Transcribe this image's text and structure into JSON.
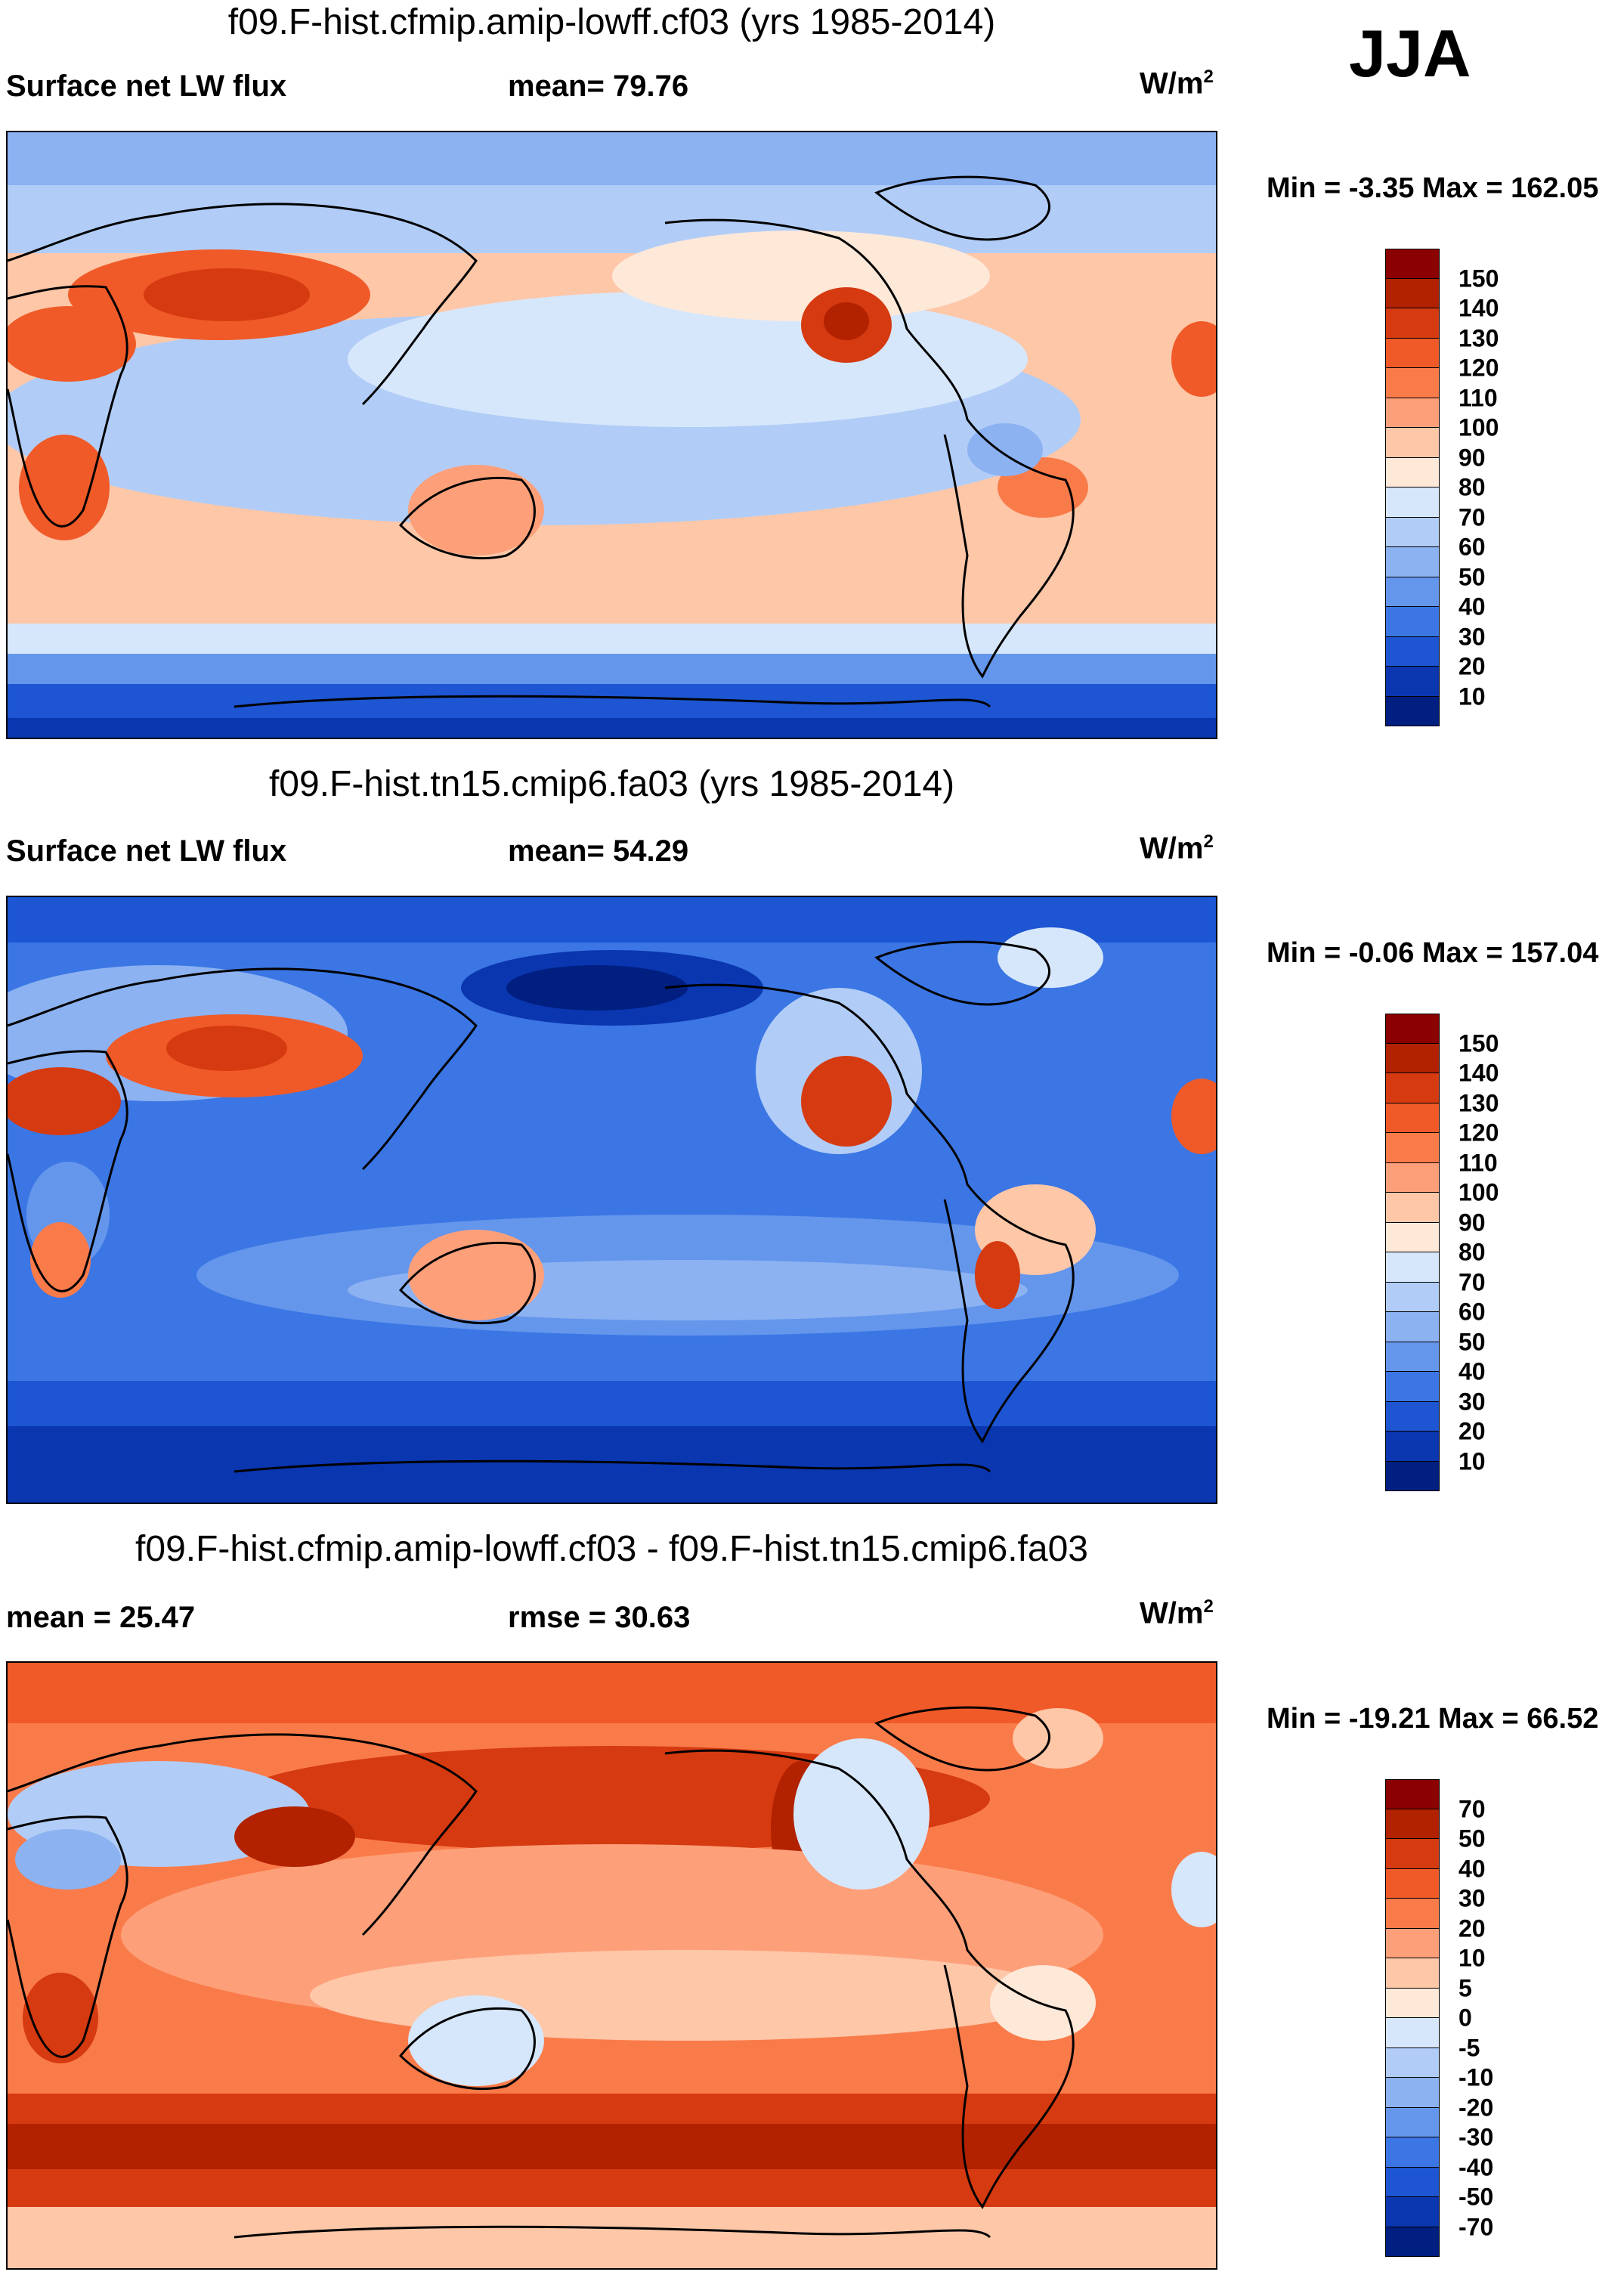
{
  "season": "JJA",
  "panels": [
    {
      "title": "f09.F-hist.cfmip.amip-lowff.cf03 (yrs 1985-2014)",
      "left_label": "Surface net LW flux",
      "center_label": "mean=  79.76",
      "unit": "W/m",
      "unit_sup": "2",
      "minmax": "Min =  -3.35 Max = 162.05",
      "scheme": "abs1"
    },
    {
      "title": "f09.F-hist.tn15.cmip6.fa03 (yrs 1985-2014)",
      "left_label": "Surface net LW flux",
      "center_label": "mean=  54.29",
      "unit": "W/m",
      "unit_sup": "2",
      "minmax": "Min =  -0.06 Max = 157.04",
      "scheme": "abs2"
    },
    {
      "title": "f09.F-hist.cfmip.amip-lowff.cf03 - f09.F-hist.tn15.cmip6.fa03",
      "left_label": "mean =  25.47",
      "center_label": "rmse =  30.63",
      "unit": "W/m",
      "unit_sup": "2",
      "minmax": "Min = -19.21 Max =  66.52",
      "scheme": "diff"
    }
  ],
  "colorbars": [
    {
      "labels": [
        "150",
        "140",
        "130",
        "120",
        "110",
        "100",
        "90",
        "80",
        "70",
        "60",
        "50",
        "40",
        "30",
        "20",
        "10"
      ],
      "colors": [
        "#8b0000",
        "#b22200",
        "#d63a10",
        "#f05a28",
        "#fa7b4a",
        "#fda07a",
        "#fdc7a8",
        "#fee8d8",
        "#d7e7fb",
        "#b1cdf7",
        "#8cb2f2",
        "#6496ec",
        "#3b76e4",
        "#1d55d2",
        "#0a36b0",
        "#001f80"
      ]
    },
    {
      "labels": [
        "150",
        "140",
        "130",
        "120",
        "110",
        "100",
        "90",
        "80",
        "70",
        "60",
        "50",
        "40",
        "30",
        "20",
        "10"
      ],
      "colors": [
        "#8b0000",
        "#b22200",
        "#d63a10",
        "#f05a28",
        "#fa7b4a",
        "#fda07a",
        "#fdc7a8",
        "#fee8d8",
        "#d7e7fb",
        "#b1cdf7",
        "#8cb2f2",
        "#6496ec",
        "#3b76e4",
        "#1d55d2",
        "#0a36b0",
        "#001f80"
      ]
    },
    {
      "labels": [
        "70",
        "50",
        "40",
        "30",
        "20",
        "10",
        "5",
        "0",
        "-5",
        "-10",
        "-20",
        "-30",
        "-40",
        "-50",
        "-70"
      ],
      "colors": [
        "#8b0000",
        "#b22200",
        "#d63a10",
        "#f05a28",
        "#fa7b4a",
        "#fda07a",
        "#fdc7a8",
        "#fee8d8",
        "#d7e7fb",
        "#b1cdf7",
        "#8cb2f2",
        "#6496ec",
        "#3b76e4",
        "#1d55d2",
        "#0a36b0",
        "#001f80"
      ]
    }
  ]
}
